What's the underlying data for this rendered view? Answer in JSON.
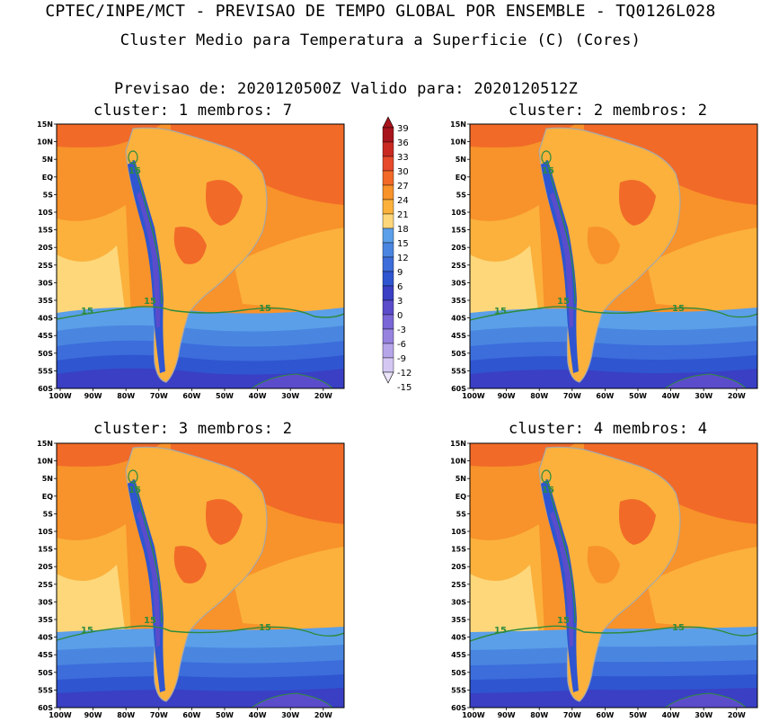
{
  "header": {
    "title": "CPTEC/INPE/MCT - PREVISAO DE TEMPO GLOBAL POR ENSEMBLE - TQ0126L028",
    "subtitle": "Cluster Medio para Temperatura a Superficie (C) (Cores)",
    "forecast_line": "Previsao de: 2020120500Z    Valido para: 2020120512Z"
  },
  "panels": [
    {
      "label": "cluster: 1   membros: 7"
    },
    {
      "label": "cluster: 2   membros: 2"
    },
    {
      "label": "cluster: 3   membros: 2"
    },
    {
      "label": "cluster: 4   membros: 4"
    }
  ],
  "axes": {
    "lat_ticks": [
      "15N",
      "10N",
      "5N",
      "EQ",
      "5S",
      "10S",
      "15S",
      "20S",
      "25S",
      "30S",
      "35S",
      "40S",
      "45S",
      "50S",
      "55S",
      "60S"
    ],
    "lon_ticks": [
      "100W",
      "90W",
      "80W",
      "70W",
      "60W",
      "50W",
      "40W",
      "30W",
      "20W"
    ]
  },
  "contour_label": "15",
  "colorbar": {
    "labels": [
      "39",
      "36",
      "33",
      "30",
      "27",
      "24",
      "21",
      "18",
      "15",
      "12",
      "9",
      "6",
      "3",
      "0",
      "-3",
      "-6",
      "-9",
      "-12",
      "-15"
    ],
    "colors": [
      "#a8141c",
      "#c82a22",
      "#e64a2a",
      "#f16a28",
      "#f8922a",
      "#fbb13c",
      "#fdd77a",
      "#5b9fe9",
      "#4a86e0",
      "#3c6ddb",
      "#2f55d0",
      "#3a3fc4",
      "#5b4ccb",
      "#7a66d6",
      "#9783df",
      "#b7a5ea",
      "#d4c8f3"
    ]
  },
  "colors": {
    "contour": "#2e8b3c",
    "land_border": "#a8a8a8",
    "frame": "#000000"
  }
}
